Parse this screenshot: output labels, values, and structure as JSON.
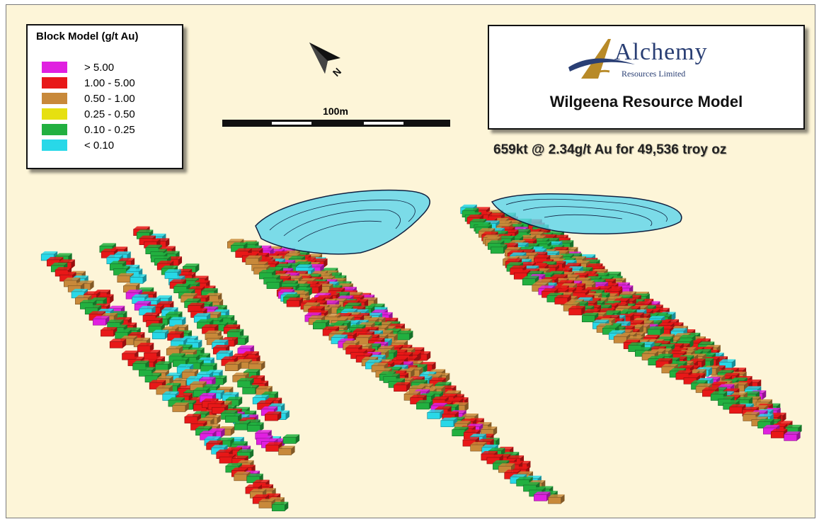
{
  "legend": {
    "title": "Block Model (g/t Au)",
    "items": [
      {
        "label": "> 5.00",
        "color": "#e020e0"
      },
      {
        "label": "1.00 - 5.00",
        "color": "#e81818"
      },
      {
        "label": "0.50 - 1.00",
        "color": "#c8893a"
      },
      {
        "label": "0.25 - 0.50",
        "color": "#e6e010"
      },
      {
        "label": "0.10 - 0.25",
        "color": "#22b040"
      },
      {
        "label": "< 0.10",
        "color": "#28d8e8"
      }
    ]
  },
  "north_arrow": {
    "label": "N"
  },
  "scale_bar": {
    "label": "100m"
  },
  "brand": {
    "name": "Alchemy",
    "subtitle": "Resources Limited",
    "title": "Wilgeena Resource Model"
  },
  "stats": "659kt @ 2.34g/t Au for 49,536 troy oz",
  "colors": {
    "background": "#fdf5d8",
    "pit_fill": "#5ad4ec",
    "pit_outline": "#102040"
  }
}
